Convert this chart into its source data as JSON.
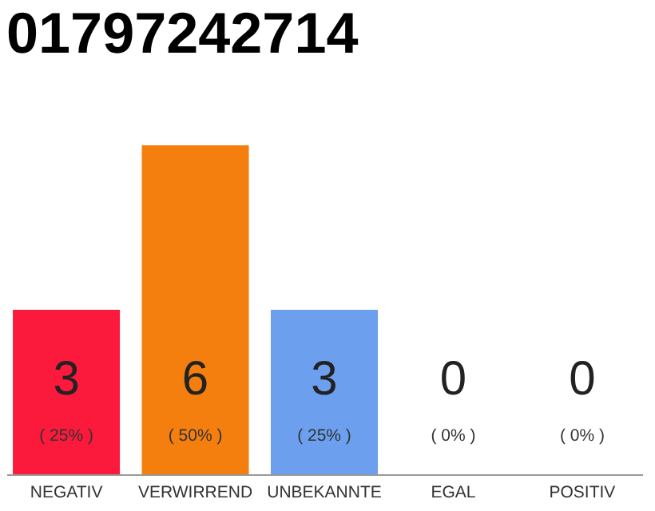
{
  "chart_data": {
    "type": "bar",
    "title": "01797242714",
    "categories": [
      "NEGATIV",
      "VERWIRREND",
      "UNBEKANNTE",
      "EGAL",
      "POSITIV"
    ],
    "values": [
      3,
      6,
      3,
      0,
      0
    ],
    "colors": [
      "#fc1a3c",
      "#f47f0e",
      "#6ca0ef",
      "#cccccc",
      "#cccccc"
    ],
    "ylim": [
      0,
      6
    ],
    "tick_labels": "x",
    "data_labels": true,
    "annotations": [
      "( 25% )",
      "( 50% )",
      "( 25% )",
      "( 0% )",
      "( 0% )"
    ]
  }
}
